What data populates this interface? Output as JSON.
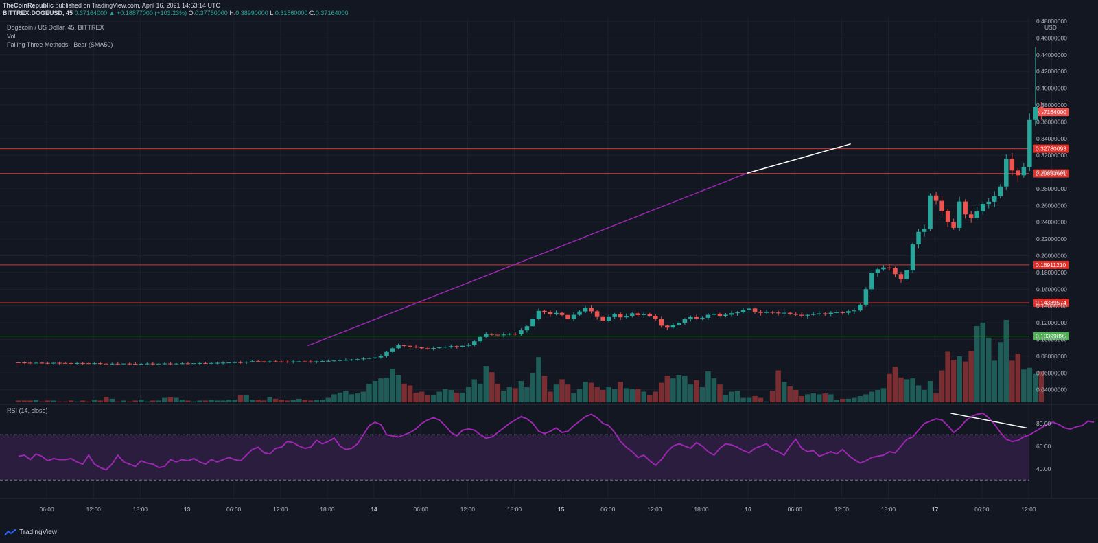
{
  "header": {
    "publisher": "TheCoinRepublic",
    "published_text": "published on TradingView.com, April 16, 2021 14:53:14 UTC",
    "symbol": "BITTREX:DOGEUSD, 45",
    "last": "0.37164000",
    "change": "+0.18877000 (+103.23%)",
    "o_label": "O:",
    "o": "0.37750000",
    "h_label": "H:",
    "h": "0.38990000",
    "l_label": "L:",
    "l": "0.31560000",
    "c_label": "C:",
    "c": "0.37164000"
  },
  "legend": {
    "title": "Dogecoin / US Dollar, 45, BITTREX",
    "vol": "Vol",
    "pattern": "Falling Three Methods - Bear (SMA50)",
    "rsi": "RSI (14, close)"
  },
  "footer": {
    "brand": "TradingView",
    "logo_icon": "tradingview-logo-icon"
  },
  "colors": {
    "bg": "#131722",
    "grid": "#1e222d",
    "up": "#26a69a",
    "down": "#ef5350",
    "vol_up": "#1f5c58",
    "vol_down": "#7b2e31",
    "resistance": "#e0302a",
    "support": "#4caf50",
    "trendline": "#9c27b0",
    "rsi": "#9c27b0",
    "rsi_band": "#2a1d3d",
    "white_line": "#ffffff"
  },
  "chart_data": {
    "type": "candlestick",
    "price_axis": {
      "unit": "USD",
      "range": [
        0.025,
        0.48
      ],
      "ticks": [
        "0.04000000",
        "0.06000000",
        "0.08000000",
        "0.10000000",
        "0.12000000",
        "0.14000000",
        "0.16000000",
        "0.18000000",
        "0.20000000",
        "0.22000000",
        "0.24000000",
        "0.26000000",
        "0.28000000",
        "0.30000000",
        "0.32000000",
        "0.34000000",
        "0.36000000",
        "0.38000000",
        "0.40000000",
        "0.42000000",
        "0.44000000",
        "0.46000000",
        "0.48000000"
      ]
    },
    "time_axis": {
      "labels": [
        "06:00",
        "12:00",
        "18:00",
        "13",
        "06:00",
        "12:00",
        "18:00",
        "14",
        "06:00",
        "12:00",
        "18:00",
        "15",
        "06:00",
        "12:00",
        "18:00",
        "16",
        "06:00",
        "12:00",
        "18:00",
        "17",
        "06:00",
        "12:00"
      ],
      "start": "2021-04-12T00:00",
      "end": "2021-04-17T15:00"
    },
    "candles": {
      "interval_minutes": 45,
      "start": "2021-04-12T02:00",
      "closes": [
        0.0725,
        0.0722,
        0.072,
        0.0722,
        0.0719,
        0.0718,
        0.0721,
        0.0719,
        0.0718,
        0.0716,
        0.0718,
        0.0716,
        0.0714,
        0.0716,
        0.0711,
        0.0708,
        0.0711,
        0.0709,
        0.0712,
        0.071,
        0.0708,
        0.071,
        0.0712,
        0.0709,
        0.0711,
        0.0713,
        0.071,
        0.0712,
        0.0715,
        0.0714,
        0.0716,
        0.0718,
        0.0717,
        0.0719,
        0.0721,
        0.0723,
        0.0725,
        0.0728,
        0.0725,
        0.0732,
        0.074,
        0.0738,
        0.0735,
        0.0738,
        0.0736,
        0.0734,
        0.0733,
        0.0736,
        0.0738,
        0.0736,
        0.0734,
        0.0738,
        0.0741,
        0.0744,
        0.0748,
        0.0752,
        0.0756,
        0.076,
        0.0765,
        0.0772,
        0.0778,
        0.0786,
        0.0805,
        0.085,
        0.0895,
        0.093,
        0.0925,
        0.0915,
        0.0905,
        0.0895,
        0.0892,
        0.0898,
        0.0905,
        0.0912,
        0.092,
        0.0912,
        0.0925,
        0.0935,
        0.0978,
        0.103,
        0.1065,
        0.1058,
        0.1052,
        0.1059,
        0.1068,
        0.1064,
        0.111,
        0.1158,
        0.125,
        0.1342,
        0.1326,
        0.1303,
        0.1318,
        0.1293,
        0.1248,
        0.1295,
        0.1335,
        0.1378,
        0.1337,
        0.1269,
        0.1225,
        0.1268,
        0.1305,
        0.1265,
        0.1283,
        0.1312,
        0.1292,
        0.1306,
        0.1283,
        0.1245,
        0.1165,
        0.1142,
        0.1176,
        0.12,
        0.1244,
        0.1267,
        0.1251,
        0.1259,
        0.1295,
        0.1307,
        0.1283,
        0.1296,
        0.1314,
        0.1325,
        0.1355,
        0.137,
        0.1332,
        0.1318,
        0.1328,
        0.1322,
        0.1313,
        0.1319,
        0.1306,
        0.1295,
        0.1285,
        0.1294,
        0.1305,
        0.1312,
        0.1305,
        0.1319,
        0.1325,
        0.1318,
        0.1338,
        0.1347,
        0.1415,
        0.16,
        0.1795,
        0.1838,
        0.1859,
        0.185,
        0.1781,
        0.1721,
        0.1825,
        0.2135,
        0.2285,
        0.232,
        0.272,
        0.2655,
        0.2536,
        0.2403,
        0.2333,
        0.2647,
        0.2494,
        0.2453,
        0.2531,
        0.2619,
        0.2645,
        0.2712,
        0.2827,
        0.3158,
        0.3018,
        0.2961,
        0.3059,
        0.3621,
        0.3775,
        0.3716
      ],
      "highs_max": 0.449,
      "lows_min": 0.0705
    },
    "volume_series_name": "Vol",
    "volume": [
      2,
      2,
      2,
      3,
      1,
      2,
      2,
      1,
      1,
      2,
      1,
      2,
      1,
      3,
      2,
      6,
      4,
      1,
      2,
      1,
      2,
      3,
      1,
      2,
      2,
      5,
      6,
      5,
      3,
      2,
      1,
      2,
      2,
      3,
      2,
      2,
      3,
      3,
      8,
      8,
      3,
      3,
      2,
      6,
      4,
      3,
      2,
      3,
      4,
      3,
      2,
      3,
      3,
      5,
      9,
      11,
      13,
      9,
      10,
      12,
      21,
      24,
      27,
      28,
      38,
      31,
      21,
      19,
      11,
      12,
      8,
      8,
      12,
      15,
      14,
      11,
      11,
      17,
      26,
      21,
      41,
      34,
      21,
      13,
      17,
      16,
      24,
      17,
      33,
      51,
      30,
      12,
      20,
      26,
      20,
      10,
      15,
      23,
      22,
      17,
      14,
      17,
      15,
      23,
      16,
      15,
      15,
      12,
      8,
      12,
      22,
      30,
      27,
      31,
      30,
      20,
      25,
      17,
      35,
      27,
      20,
      8,
      12,
      13,
      5,
      5,
      7,
      5,
      1,
      13,
      36,
      23,
      18,
      14,
      7,
      9,
      10,
      9,
      10,
      9,
      3,
      4,
      4,
      5,
      7,
      9,
      12,
      14,
      16,
      32,
      40,
      28,
      26,
      27,
      19,
      14,
      24,
      10,
      36,
      57,
      48,
      52,
      46,
      58,
      86,
      90,
      73,
      47,
      68,
      93,
      47,
      55,
      37,
      39,
      32,
      35,
      18
    ],
    "horizontal_levels": [
      {
        "value": 0.3278,
        "label": "0.32780093",
        "kind": "resistance"
      },
      {
        "value": 0.29834,
        "label": "0.29833691",
        "kind": "resistance"
      },
      {
        "value": 0.18911,
        "label": "0.18911210",
        "kind": "resistance"
      },
      {
        "value": 0.1439,
        "label": "0.14389574",
        "kind": "resistance"
      },
      {
        "value": 0.104,
        "label": "0.10399895",
        "kind": "support"
      }
    ],
    "last_price_label": "0.37164000",
    "trendlines": [
      {
        "from": [
          "2021-04-13T15:30",
          0.0925
        ],
        "to": [
          "2021-04-15T23:50",
          0.2985
        ],
        "color": "trendline"
      },
      {
        "from": [
          "2021-04-15T23:50",
          0.2985
        ],
        "to": [
          "2021-04-16T13:10",
          0.3335
        ],
        "color": "white_line"
      }
    ],
    "rsi": {
      "name": "RSI (14, close)",
      "range": [
        15,
        95
      ],
      "ticks": [
        "40.00",
        "60.00",
        "80.00"
      ],
      "bands": [
        30,
        70
      ],
      "values": [
        51,
        52,
        48,
        53,
        51,
        47,
        49,
        48,
        48,
        49,
        46,
        44,
        52,
        44,
        41,
        39,
        44,
        52,
        46,
        44,
        42,
        47,
        45,
        44,
        41,
        42,
        48,
        46,
        48,
        47,
        49,
        46,
        44,
        48,
        46,
        48,
        50,
        48,
        47,
        52,
        57,
        59,
        54,
        53,
        58,
        59,
        64,
        63,
        60,
        58,
        59,
        65,
        62,
        64,
        67,
        60,
        57,
        58,
        62,
        70,
        78,
        81,
        79,
        70,
        69,
        68,
        70,
        72,
        75,
        80,
        83,
        85,
        83,
        78,
        72,
        69,
        74,
        75,
        74,
        70,
        67,
        68,
        72,
        76,
        80,
        83,
        86,
        84,
        80,
        73,
        71,
        73,
        76,
        72,
        73,
        78,
        82,
        86,
        88,
        85,
        80,
        78,
        72,
        64,
        59,
        55,
        50,
        52,
        47,
        43,
        48,
        55,
        60,
        62,
        60,
        58,
        63,
        60,
        55,
        52,
        58,
        62,
        61,
        59,
        56,
        54,
        58,
        60,
        62,
        57,
        55,
        52,
        60,
        66,
        58,
        55,
        56,
        51,
        53,
        55,
        53,
        57,
        52,
        48,
        45,
        47,
        50,
        51,
        52,
        55,
        54,
        60,
        66,
        68,
        74,
        80,
        82,
        84,
        83,
        78,
        72,
        76,
        82,
        86,
        88,
        89,
        85,
        79,
        72,
        66,
        64,
        65,
        68,
        70,
        73,
        76,
        79,
        81,
        79,
        76,
        75,
        77,
        78,
        82,
        81
      ]
    }
  }
}
